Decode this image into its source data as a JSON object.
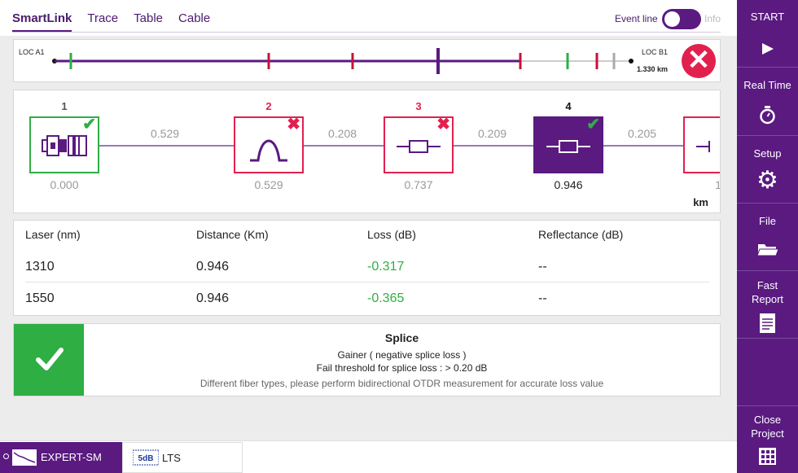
{
  "tabs": [
    "SmartLink",
    "Trace",
    "Table",
    "Cable"
  ],
  "event_line": {
    "label": "Event line",
    "state": "on",
    "info_label": "Info"
  },
  "link_overview": {
    "start_label": "LOC A1",
    "end_label": "LOC B1",
    "total_length": "1.330 km"
  },
  "events": [
    {
      "number": "1",
      "type": "connector",
      "position": "0.000",
      "status": "pass",
      "number_color": "#555555",
      "box_color": "#2fae44"
    },
    {
      "number": "2",
      "type": "reflective",
      "position": "0.529",
      "status": "fail",
      "number_color": "#e2204e",
      "box_color": "#e2204e"
    },
    {
      "number": "3",
      "type": "splice",
      "position": "0.737",
      "status": "fail",
      "number_color": "#e2204e",
      "box_color": "#e2204e"
    },
    {
      "number": "4",
      "type": "splice",
      "position": "0.946",
      "status": "pass",
      "selected": true,
      "number_color": "#111111",
      "box_color": "#5a1a80"
    },
    {
      "number": "",
      "type": "splice",
      "position": "1",
      "status": "",
      "number_color": "#555555",
      "box_color": "#e2204e"
    }
  ],
  "segments": [
    "0.529",
    "0.208",
    "0.209",
    "0.205"
  ],
  "units": "km",
  "table": {
    "headers": [
      "Laser (nm)",
      "Distance (Km)",
      "Loss (dB)",
      "Reflectance (dB)"
    ],
    "rows": [
      [
        "1310",
        "0.946",
        "-0.317",
        "--"
      ],
      [
        "1550",
        "0.946",
        "-0.365",
        "--"
      ]
    ]
  },
  "result": {
    "title": "Splice",
    "status": "pass",
    "line1": "Gainer ( negative splice loss )",
    "line2": "Fail threshold for splice loss : > 0.20 dB",
    "note": "Different fiber types, please perform bidirectional OTDR measurement for accurate loss value"
  },
  "bottom_tabs": [
    "EXPERT-SM",
    "LTS"
  ],
  "sidebar": {
    "start": "START",
    "real_time": "Real Time",
    "setup": "Setup",
    "file": "File",
    "fast_report_1": "Fast",
    "fast_report_2": "Report",
    "close_project_1": "Close",
    "close_project_2": "Project"
  },
  "colors": {
    "brand": "#5a1a80",
    "pass": "#2fae44",
    "fail": "#e2204e",
    "marker_gray": "#aaaaaa"
  }
}
